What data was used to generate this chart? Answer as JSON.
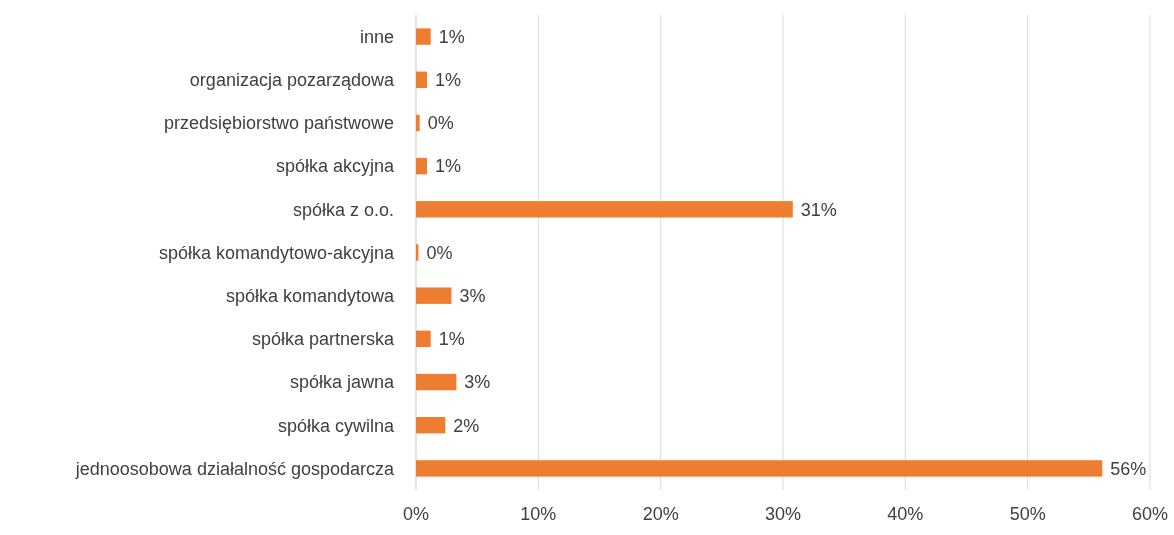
{
  "chart_data": {
    "type": "bar",
    "orientation": "horizontal",
    "categories": [
      "inne",
      "organizacja pozarządowa",
      "przedsiębiorstwo państwowe",
      "spółka akcyjna",
      "spółka z o.o.",
      "spółka komandytowo-akcyjna",
      "spółka komandytowa",
      "spółka partnerska",
      "spółka jawna",
      "spółka cywilna",
      "jednoosobowa działalność gospodarcza"
    ],
    "values": [
      1.2,
      0.9,
      0.3,
      0.9,
      30.8,
      0.2,
      2.9,
      1.2,
      3.3,
      2.4,
      56.1
    ],
    "value_labels": [
      "1%",
      "1%",
      "0%",
      "1%",
      "31%",
      "0%",
      "3%",
      "1%",
      "3%",
      "2%",
      "56%"
    ],
    "color": "#ed7d31",
    "xlim": [
      0,
      60
    ],
    "xticks": [
      {
        "value": 0,
        "label": "0%"
      },
      {
        "value": 10,
        "label": "10%"
      },
      {
        "value": 20,
        "label": "20%"
      },
      {
        "value": 30,
        "label": "30%"
      },
      {
        "value": 40,
        "label": "40%"
      },
      {
        "value": 50,
        "label": "50%"
      },
      {
        "value": 60,
        "label": "60%"
      }
    ],
    "grid": "x"
  }
}
